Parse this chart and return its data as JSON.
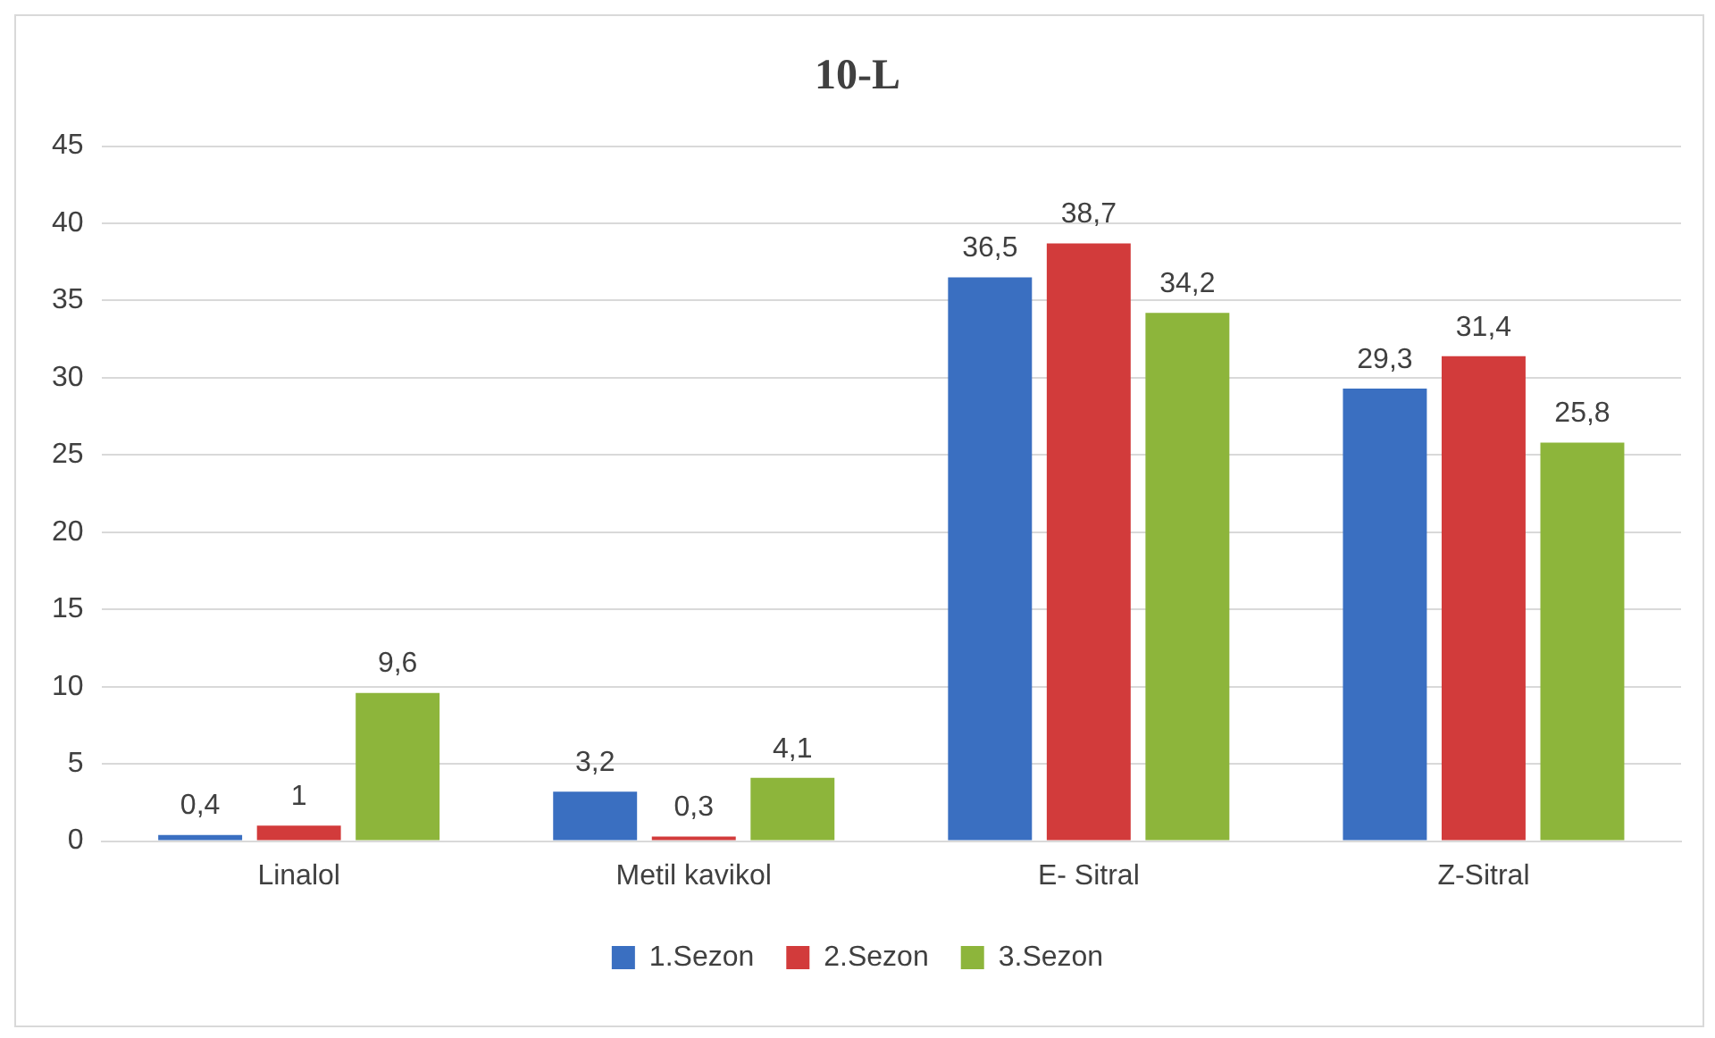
{
  "chart_data": {
    "type": "bar",
    "title": "10-L",
    "categories": [
      "Linalol",
      "Metil kavikol",
      "E- Sitral",
      "Z-Sitral"
    ],
    "series": [
      {
        "name": "1.Sezon",
        "color": "#3a6fc1",
        "values": [
          0.4,
          3.2,
          36.5,
          29.3
        ],
        "value_labels": [
          "0,4",
          "3,2",
          "36,5",
          "29,3"
        ]
      },
      {
        "name": "2.Sezon",
        "color": "#d23b3b",
        "values": [
          1,
          0.3,
          38.7,
          31.4
        ],
        "value_labels": [
          "1",
          "0,3",
          "38,7",
          "31,4"
        ]
      },
      {
        "name": "3.Sezon",
        "color": "#8db53b",
        "values": [
          9.6,
          4.1,
          34.2,
          25.8
        ],
        "value_labels": [
          "9,6",
          "4,1",
          "34,2",
          "25,8"
        ]
      }
    ],
    "ylim": [
      0,
      45
    ],
    "yticks": [
      0,
      5,
      10,
      15,
      20,
      25,
      30,
      35,
      40,
      45
    ],
    "grid": "y",
    "legend": "bottom"
  }
}
